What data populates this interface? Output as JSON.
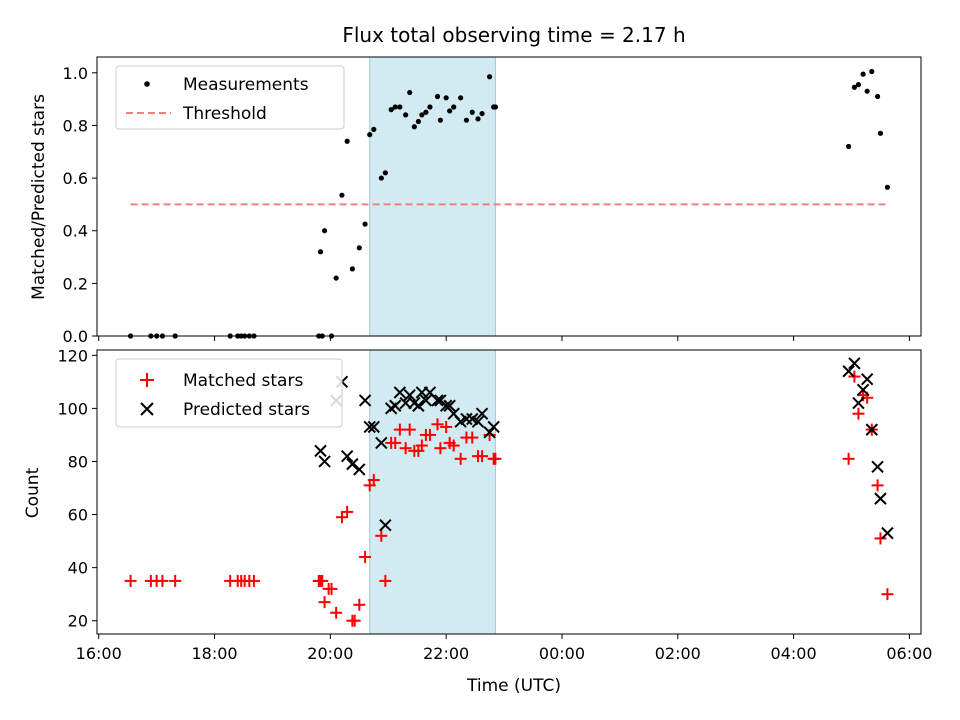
{
  "chart_data": {
    "type": "scatter",
    "title": "Flux total observing time = 2.17 h",
    "xlabel": "Time (UTC)",
    "x_unit": "hours since 16:00 UTC, values past 24 are after midnight",
    "xlim": [
      15.97,
      30.2
    ],
    "x_ticks": [
      {
        "v": 16,
        "label": "16:00"
      },
      {
        "v": 18,
        "label": "18:00"
      },
      {
        "v": 20,
        "label": "20:00"
      },
      {
        "v": 22,
        "label": "22:00"
      },
      {
        "v": 24,
        "label": "00:00"
      },
      {
        "v": 26,
        "label": "02:00"
      },
      {
        "v": 28,
        "label": "04:00"
      },
      {
        "v": 30,
        "label": "06:00"
      }
    ],
    "shaded_span": {
      "start": 20.68,
      "end": 22.85,
      "color": "#add8e6"
    },
    "top": {
      "ylabel": "Matched/Predicted stars",
      "ylim": [
        0,
        1.06
      ],
      "y_ticks": [
        "0.0",
        "0.2",
        "0.4",
        "0.6",
        "0.8",
        "1.0"
      ],
      "legend": {
        "position": "top-left",
        "entries": [
          "Measurements",
          "Threshold"
        ]
      },
      "threshold": {
        "name": "Threshold",
        "value": 0.5,
        "x_range": [
          16.55,
          29.62
        ],
        "color": "#f08080"
      },
      "measurements": {
        "name": "Measurements",
        "color": "#000000",
        "x": [
          16.55,
          16.9,
          17.0,
          17.1,
          17.32,
          18.27,
          18.4,
          18.46,
          18.52,
          18.6,
          18.68,
          19.8,
          19.86,
          19.83,
          19.9,
          20.02,
          20.1,
          20.2,
          20.29,
          20.38,
          20.5,
          20.6,
          20.68,
          20.75,
          20.88,
          20.95,
          21.05,
          21.12,
          21.2,
          21.3,
          21.37,
          21.45,
          21.52,
          21.58,
          21.65,
          21.72,
          21.85,
          21.9,
          22.0,
          22.06,
          22.13,
          22.25,
          22.35,
          22.45,
          22.55,
          22.62,
          22.75,
          22.82,
          22.85,
          28.95,
          29.05,
          29.12,
          29.2,
          29.27,
          29.35,
          29.45,
          29.5,
          29.62
        ],
        "y": [
          0,
          0,
          0,
          0,
          0,
          0,
          0,
          0,
          0,
          0,
          0,
          0,
          0,
          0.32,
          0.4,
          0,
          0.22,
          0.535,
          0.74,
          0.255,
          0.335,
          0.425,
          0.765,
          0.785,
          0.6,
          0.62,
          0.86,
          0.87,
          0.87,
          0.84,
          0.925,
          0.795,
          0.815,
          0.84,
          0.85,
          0.87,
          0.91,
          0.82,
          0.905,
          0.855,
          0.87,
          0.905,
          0.82,
          0.85,
          0.825,
          0.845,
          0.985,
          0.87,
          0.87,
          0.72,
          0.945,
          0.955,
          0.995,
          0.93,
          1.005,
          0.91,
          0.77,
          0.565
        ]
      }
    },
    "bottom": {
      "ylabel": "Count",
      "ylim": [
        15,
        122
      ],
      "y_ticks": [
        "20",
        "40",
        "60",
        "80",
        "100",
        "120"
      ],
      "legend": {
        "position": "top-left",
        "entries": [
          "Matched stars",
          "Predicted stars"
        ]
      },
      "series": [
        {
          "name": "Matched stars",
          "marker": "plus",
          "color": "#ff0000",
          "x": [
            16.55,
            16.9,
            17.0,
            17.1,
            17.32,
            18.27,
            18.4,
            18.46,
            18.52,
            18.6,
            18.68,
            19.8,
            19.86,
            19.83,
            19.9,
            19.97,
            20.02,
            20.1,
            20.2,
            20.29,
            20.38,
            20.42,
            20.5,
            20.6,
            20.68,
            20.75,
            20.88,
            20.95,
            21.05,
            21.12,
            21.2,
            21.3,
            21.37,
            21.45,
            21.52,
            21.58,
            21.65,
            21.72,
            21.85,
            21.9,
            22.0,
            22.06,
            22.13,
            22.25,
            22.35,
            22.45,
            22.55,
            22.62,
            22.75,
            22.82,
            22.85,
            28.95,
            29.05,
            29.12,
            29.2,
            29.27,
            29.35,
            29.45,
            29.5,
            29.62
          ],
          "y": [
            35,
            35,
            35,
            35,
            35,
            35,
            35,
            35,
            35,
            35,
            35,
            35,
            35,
            35,
            27,
            32,
            32,
            23,
            59,
            61,
            20,
            20,
            26,
            44,
            71,
            73,
            52,
            35,
            87,
            87,
            92,
            85,
            92,
            84,
            84,
            86,
            90,
            90,
            94,
            85,
            93,
            87,
            86,
            81,
            89,
            89,
            82,
            82,
            90,
            81,
            81,
            81,
            112,
            98,
            105,
            104,
            92,
            71,
            51,
            30
          ]
        },
        {
          "name": "Predicted stars",
          "marker": "x",
          "color": "#000000",
          "x": [
            19.83,
            19.9,
            20.1,
            20.2,
            20.29,
            20.38,
            20.5,
            20.6,
            20.68,
            20.75,
            20.88,
            20.95,
            21.05,
            21.12,
            21.2,
            21.3,
            21.37,
            21.45,
            21.52,
            21.58,
            21.65,
            21.72,
            21.85,
            21.9,
            22.0,
            22.06,
            22.13,
            22.25,
            22.35,
            22.45,
            22.55,
            22.62,
            22.75,
            22.82,
            28.95,
            29.05,
            29.12,
            29.2,
            29.27,
            29.35,
            29.45,
            29.5,
            29.62
          ],
          "y": [
            84,
            80,
            103,
            110,
            82,
            79,
            77,
            103,
            93,
            93,
            87,
            56,
            100,
            101,
            106,
            102,
            105,
            102,
            101,
            106,
            103,
            106,
            103,
            103,
            101,
            101,
            98,
            95,
            96,
            96,
            95,
            98,
            91,
            93,
            114,
            117,
            102,
            107,
            111,
            92,
            78,
            66,
            53
          ]
        }
      ]
    }
  }
}
